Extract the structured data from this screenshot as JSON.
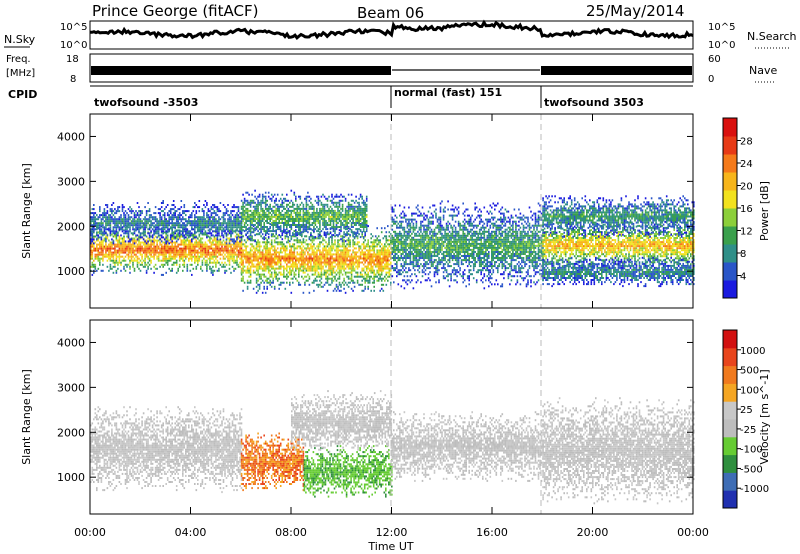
{
  "header": {
    "station": "Prince George (fitACF)",
    "beam": "Beam 06",
    "date": "25/May/2014"
  },
  "top_panels": {
    "nsky_label": "N.Sky",
    "nsky_ticks": [
      "10^5",
      "10^0"
    ],
    "nsearch_label": "N.Search",
    "nsearch_ticks": [
      "10^5",
      "10^0"
    ],
    "freq_label": "Freq.",
    "freq_unit": "[MHz]",
    "freq_ticks": [
      "18",
      "8"
    ],
    "nave_label": "Nave",
    "nave_ticks": [
      "60",
      "0"
    ],
    "cpid_label": "CPID",
    "cpid_segments": [
      {
        "label": "twofsound -3503",
        "start_hour": 0,
        "end_hour": 12
      },
      {
        "label": "normal (fast) 151",
        "start_hour": 12,
        "end_hour": 18
      },
      {
        "label": "twofsound 3503",
        "start_hour": 18,
        "end_hour": 24
      }
    ]
  },
  "chart_data": [
    {
      "type": "heatmap",
      "title": "",
      "xlabel": "Time UT",
      "ylabel": "Slant Range [km]",
      "x_ticks": [
        "00:00",
        "04:00",
        "08:00",
        "12:00",
        "16:00",
        "20:00",
        "00:00"
      ],
      "x_range_hours": [
        0,
        24
      ],
      "y_ticks": [
        1000,
        2000,
        3000,
        4000
      ],
      "ylim": [
        180,
        4500
      ],
      "colorbar": {
        "label": "Power [dB]",
        "ticks": [
          "4",
          "8",
          "12",
          "16",
          "20",
          "24",
          "28"
        ],
        "colors": [
          "#1a1adf",
          "#2a56c8",
          "#2f8f88",
          "#3aa04c",
          "#8ccf3a",
          "#f2e21e",
          "#f7b51b",
          "#f57a1a",
          "#e73a16",
          "#d9100e"
        ]
      },
      "bands": [
        {
          "start_hour": 0.0,
          "end_hour": 6.0,
          "center_km": 1450,
          "width_km": 600,
          "level": 0.78
        },
        {
          "start_hour": 0.0,
          "end_hour": 6.0,
          "center_km": 2050,
          "width_km": 500,
          "level": 0.25
        },
        {
          "start_hour": 6.0,
          "end_hour": 12.0,
          "center_km": 1250,
          "width_km": 800,
          "level": 0.72
        },
        {
          "start_hour": 6.0,
          "end_hour": 11.0,
          "center_km": 2200,
          "width_km": 600,
          "level": 0.4
        },
        {
          "start_hour": 12.0,
          "end_hour": 18.0,
          "center_km": 1550,
          "width_km": 1000,
          "level": 0.35
        },
        {
          "start_hour": 18.0,
          "end_hour": 24.0,
          "center_km": 1550,
          "width_km": 600,
          "level": 0.66
        },
        {
          "start_hour": 18.0,
          "end_hour": 24.0,
          "center_km": 2200,
          "width_km": 500,
          "level": 0.32
        },
        {
          "start_hour": 18.0,
          "end_hour": 24.0,
          "center_km": 950,
          "width_km": 350,
          "level": 0.28
        }
      ]
    },
    {
      "type": "heatmap",
      "title": "",
      "xlabel": "Time UT",
      "ylabel": "Slant Range [km]",
      "x_ticks": [
        "00:00",
        "04:00",
        "08:00",
        "12:00",
        "16:00",
        "20:00",
        "00:00"
      ],
      "x_range_hours": [
        0,
        24
      ],
      "y_ticks": [
        1000,
        2000,
        3000,
        4000
      ],
      "ylim": [
        180,
        4500
      ],
      "colorbar": {
        "label": "Velocity [m s^-1]",
        "ticks": [
          "1000",
          "500",
          "100",
          "25",
          "-25",
          "-100",
          "-500",
          "-1000"
        ],
        "colors": [
          "#2030b0",
          "#3e6db5",
          "#2f8f3e",
          "#66cc33",
          "#bdbdbd",
          "#c8c8c8",
          "#f5a623",
          "#f07a1e",
          "#e8451c",
          "#d21010"
        ]
      },
      "bands": [
        {
          "start_hour": 0.0,
          "end_hour": 6.0,
          "center_km": 1600,
          "width_km": 1000,
          "velocity_class": "ground"
        },
        {
          "start_hour": 6.0,
          "end_hour": 8.5,
          "center_km": 1300,
          "width_km": 700,
          "velocity_class": "negative"
        },
        {
          "start_hour": 8.5,
          "end_hour": 12.0,
          "center_km": 1100,
          "width_km": 600,
          "velocity_class": "positive"
        },
        {
          "start_hour": 8.0,
          "end_hour": 12.0,
          "center_km": 2200,
          "width_km": 700,
          "velocity_class": "ground"
        },
        {
          "start_hour": 12.0,
          "end_hour": 18.0,
          "center_km": 1650,
          "width_km": 800,
          "velocity_class": "ground"
        },
        {
          "start_hour": 18.0,
          "end_hour": 24.0,
          "center_km": 1550,
          "width_km": 1200,
          "velocity_class": "ground"
        }
      ]
    }
  ]
}
